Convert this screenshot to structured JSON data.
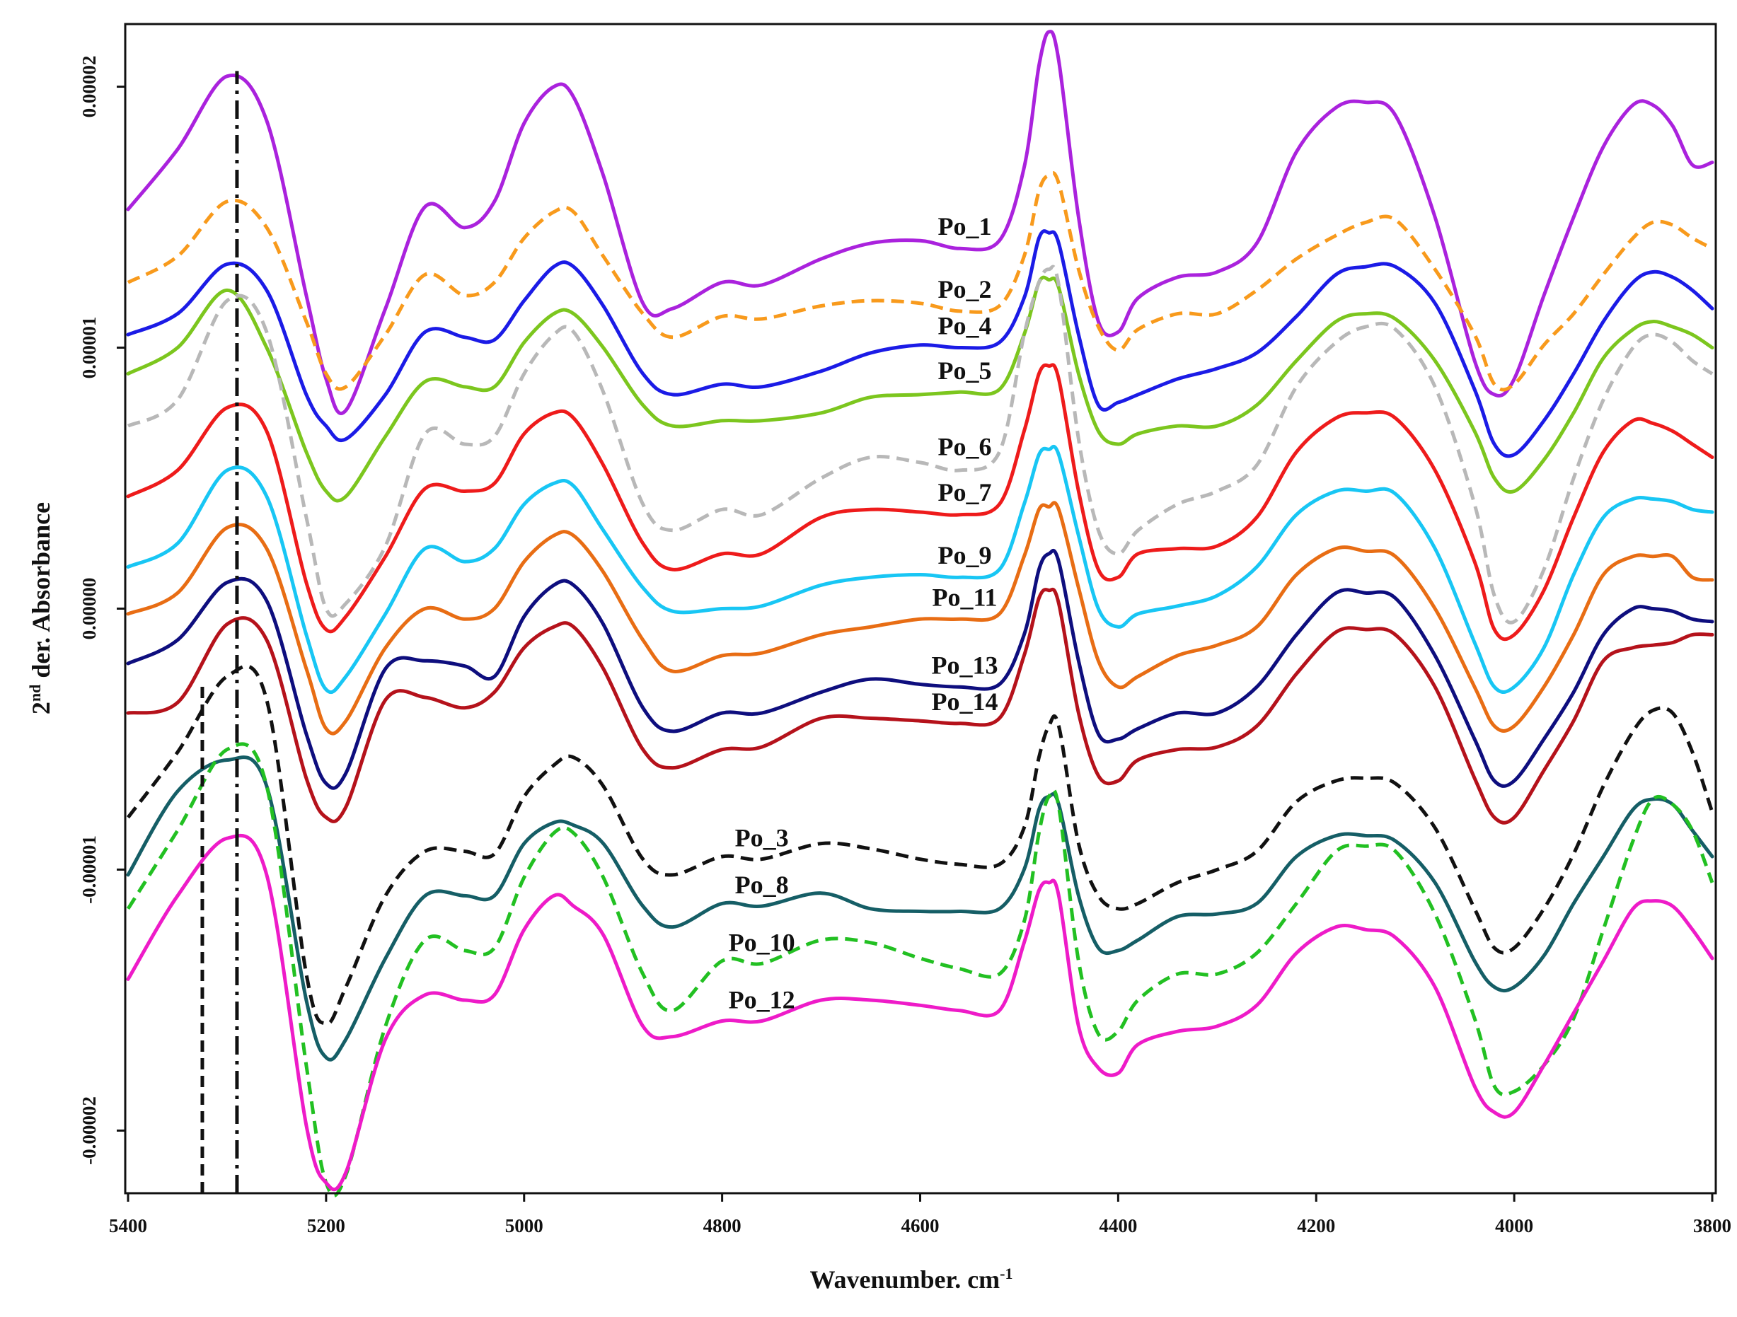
{
  "chart_data": {
    "type": "line",
    "title": "",
    "xlabel": "Wavenumber. cm",
    "xlabel_sup": "-1",
    "ylabel_pre": "2",
    "ylabel_sup": "nd",
    "ylabel_post": " der. Absorbance",
    "xlim": [
      5400,
      3800
    ],
    "ylim": [
      -2.24e-05,
      2.24e-05
    ],
    "x_ticks": [
      5400,
      5200,
      5000,
      4800,
      4600,
      4400,
      4200,
      4000,
      3800
    ],
    "x_tick_labels": [
      "5400",
      "5200",
      "5000",
      "4800",
      "4600",
      "4400",
      "4200",
      "4000",
      "3800"
    ],
    "y_ticks": [
      2e-05,
      1e-05,
      0,
      -1e-05,
      -2e-05
    ],
    "y_tick_labels": [
      "0.00002",
      "0.00001",
      "0.00000",
      "-0.00001",
      "-0.00002"
    ],
    "reference_lines": [
      {
        "x": 5290,
        "style": "dash-dot",
        "ymax": 2.06e-05
      },
      {
        "x": 5325,
        "style": "dashed",
        "ymax": -2.9e-06
      }
    ],
    "x": [
      5400,
      5350,
      5300,
      5260,
      5220,
      5200,
      5180,
      5140,
      5100,
      5060,
      5030,
      5000,
      4970,
      4950,
      4920,
      4880,
      4850,
      4800,
      4760,
      4700,
      4650,
      4600,
      4560,
      4520,
      4495,
      4480,
      4470,
      4460,
      4440,
      4420,
      4400,
      4380,
      4340,
      4300,
      4260,
      4220,
      4180,
      4150,
      4120,
      4080,
      4040,
      4020,
      4000,
      3970,
      3940,
      3910,
      3880,
      3860,
      3840,
      3820,
      3800
    ],
    "series": [
      {
        "name": "Po_1",
        "color": "#AA22DD",
        "dash": "solid",
        "values": [
          15.3,
          17.6,
          20.4,
          18.7,
          12.0,
          8.8,
          7.6,
          11.5,
          15.4,
          14.6,
          15.6,
          18.6,
          20.0,
          19.6,
          16.6,
          11.7,
          11.5,
          12.5,
          12.4,
          13.4,
          14.0,
          14.1,
          13.8,
          14.1,
          16.9,
          20.8,
          22.1,
          21.0,
          15.0,
          11.0,
          10.6,
          11.9,
          12.7,
          12.9,
          14.0,
          17.5,
          19.2,
          19.4,
          18.9,
          15.0,
          9.5,
          8.2,
          8.8,
          12.0,
          15.0,
          17.7,
          19.3,
          19.3,
          18.5,
          17.0,
          17.1
        ]
      },
      {
        "name": "Po_2",
        "color": "#F89A1C",
        "dash": "dashed",
        "values": [
          12.5,
          13.5,
          15.6,
          14.6,
          11.0,
          9.0,
          8.5,
          10.5,
          12.8,
          12.0,
          12.5,
          14.2,
          15.2,
          15.2,
          13.5,
          11.3,
          10.4,
          11.2,
          11.1,
          11.6,
          11.8,
          11.7,
          11.4,
          11.6,
          13.5,
          16.0,
          16.6,
          16.3,
          13.0,
          10.8,
          9.9,
          10.7,
          11.3,
          11.3,
          12.2,
          13.4,
          14.3,
          14.8,
          14.9,
          13.0,
          10.5,
          8.6,
          8.6,
          10.1,
          11.3,
          12.8,
          14.2,
          14.8,
          14.7,
          14.2,
          13.8
        ]
      },
      {
        "name": "Po_4",
        "color": "#1B1BE6",
        "dash": "solid",
        "values": [
          10.5,
          11.3,
          13.2,
          12.2,
          8.2,
          7.0,
          6.5,
          8.2,
          10.6,
          10.4,
          10.3,
          11.8,
          13.1,
          13.1,
          11.6,
          9.0,
          8.2,
          8.6,
          8.5,
          9.1,
          9.8,
          10.1,
          10.0,
          10.2,
          11.9,
          14.2,
          14.4,
          14.0,
          10.5,
          7.8,
          7.9,
          8.2,
          8.8,
          9.2,
          9.8,
          11.2,
          12.8,
          13.1,
          13.1,
          11.7,
          8.4,
          6.3,
          5.9,
          7.2,
          9.0,
          11.0,
          12.5,
          12.9,
          12.7,
          12.2,
          11.5
        ]
      },
      {
        "name": "Po_5",
        "color": "#7CC61E",
        "dash": "solid",
        "values": [
          9.0,
          10.0,
          12.2,
          10.0,
          6.0,
          4.5,
          4.3,
          6.6,
          8.7,
          8.5,
          8.5,
          10.2,
          11.3,
          11.3,
          10.0,
          7.8,
          7.0,
          7.2,
          7.2,
          7.5,
          8.1,
          8.2,
          8.3,
          8.4,
          10.5,
          12.5,
          12.6,
          12.3,
          9.0,
          6.8,
          6.3,
          6.7,
          7.0,
          7.0,
          7.8,
          9.5,
          11.0,
          11.3,
          11.1,
          9.5,
          6.8,
          5.0,
          4.5,
          5.7,
          7.5,
          9.6,
          10.7,
          11.0,
          10.8,
          10.5,
          10.0
        ]
      },
      {
        "name": "Po_6",
        "color": "#B8B8B8",
        "dash": "dashed",
        "values": [
          7.0,
          8.0,
          11.8,
          10.6,
          3.5,
          0.0,
          0.2,
          2.4,
          6.7,
          6.3,
          6.6,
          9.0,
          10.5,
          10.6,
          8.3,
          4.0,
          3.0,
          3.8,
          3.6,
          5.0,
          5.8,
          5.6,
          5.3,
          6.0,
          10.5,
          12.5,
          13.0,
          12.4,
          6.5,
          3.0,
          2.1,
          3.0,
          4.0,
          4.5,
          5.5,
          8.5,
          10.2,
          10.8,
          10.7,
          8.5,
          4.0,
          0.5,
          -0.5,
          1.5,
          5.0,
          8.0,
          10.0,
          10.5,
          10.2,
          9.5,
          9.0
        ]
      },
      {
        "name": "Po_7",
        "color": "#EE1B1B",
        "dash": "solid",
        "values": [
          4.3,
          5.3,
          7.7,
          6.8,
          1.0,
          -0.8,
          -0.3,
          2.0,
          4.6,
          4.5,
          4.8,
          6.7,
          7.5,
          7.3,
          5.5,
          2.5,
          1.5,
          2.1,
          2.1,
          3.5,
          3.8,
          3.7,
          3.6,
          4.0,
          6.8,
          9.0,
          9.3,
          8.8,
          4.5,
          1.5,
          1.2,
          2.1,
          2.3,
          2.4,
          3.5,
          6.0,
          7.3,
          7.5,
          7.3,
          5.3,
          1.8,
          -0.8,
          -1.0,
          0.7,
          3.5,
          6.0,
          7.2,
          7.1,
          6.8,
          6.3,
          5.8
        ]
      },
      {
        "name": "Po_9",
        "color": "#18C6F4",
        "dash": "solid",
        "values": [
          1.6,
          2.5,
          5.3,
          4.3,
          -1.0,
          -3.1,
          -2.6,
          -0.2,
          2.3,
          1.8,
          2.3,
          4.0,
          4.8,
          4.7,
          3.0,
          0.8,
          -0.1,
          0.0,
          0.1,
          0.9,
          1.2,
          1.3,
          1.2,
          1.5,
          4.0,
          5.9,
          6.1,
          5.9,
          2.8,
          0.0,
          -0.7,
          -0.2,
          0.1,
          0.5,
          1.6,
          3.6,
          4.5,
          4.5,
          4.4,
          2.3,
          -1.3,
          -3.0,
          -3.0,
          -1.5,
          1.3,
          3.5,
          4.2,
          4.2,
          4.1,
          3.8,
          3.7
        ]
      },
      {
        "name": "Po_11",
        "color": "#E86D14",
        "dash": "solid",
        "values": [
          -0.2,
          0.6,
          3.1,
          2.3,
          -2.3,
          -4.6,
          -4.3,
          -1.5,
          0.0,
          -0.4,
          0.0,
          1.8,
          2.8,
          2.8,
          1.4,
          -1.2,
          -2.4,
          -1.8,
          -1.7,
          -1.0,
          -0.7,
          -0.4,
          -0.4,
          -0.2,
          2.0,
          3.8,
          3.9,
          3.8,
          0.8,
          -2.0,
          -3.0,
          -2.6,
          -1.8,
          -1.4,
          -0.7,
          1.3,
          2.3,
          2.2,
          2.0,
          0.0,
          -3.0,
          -4.5,
          -4.5,
          -3.0,
          -1.0,
          1.3,
          2.0,
          2.0,
          2.0,
          1.2,
          1.1
        ]
      },
      {
        "name": "Po_13",
        "color": "#0E0E7E",
        "dash": "solid",
        "values": [
          -2.1,
          -1.2,
          1.0,
          0.3,
          -4.8,
          -6.7,
          -6.3,
          -2.3,
          -2.0,
          -2.2,
          -2.6,
          -0.3,
          0.9,
          0.9,
          -0.6,
          -3.8,
          -4.7,
          -4.0,
          -4.0,
          -3.2,
          -2.7,
          -2.9,
          -3.0,
          -2.9,
          -1.0,
          1.5,
          2.1,
          1.8,
          -2.0,
          -4.8,
          -5.0,
          -4.6,
          -4.0,
          -4.0,
          -3.0,
          -1.0,
          0.6,
          0.6,
          0.4,
          -1.8,
          -5.0,
          -6.6,
          -6.6,
          -5.0,
          -3.2,
          -1.0,
          0.0,
          0.0,
          -0.1,
          -0.4,
          -0.5
        ]
      },
      {
        "name": "Po_14",
        "color": "#B5121B",
        "dash": "solid",
        "values": [
          -4.0,
          -3.6,
          -0.6,
          -1.2,
          -6.5,
          -8.0,
          -7.6,
          -3.5,
          -3.4,
          -3.8,
          -3.2,
          -1.5,
          -0.7,
          -0.7,
          -2.3,
          -5.4,
          -6.1,
          -5.4,
          -5.3,
          -4.2,
          -4.2,
          -4.3,
          -4.4,
          -4.2,
          -1.8,
          0.4,
          0.7,
          0.2,
          -4.0,
          -6.4,
          -6.6,
          -5.8,
          -5.4,
          -5.3,
          -4.5,
          -2.5,
          -0.9,
          -0.8,
          -1.0,
          -3.0,
          -6.5,
          -8.0,
          -8.0,
          -6.2,
          -4.3,
          -2.0,
          -1.5,
          -1.4,
          -1.3,
          -1.0,
          -1.0
        ]
      },
      {
        "name": "Po_3",
        "color": "#111111",
        "dash": "dashed",
        "values": [
          -8.0,
          -5.5,
          -2.6,
          -3.5,
          -14.0,
          -15.9,
          -14.5,
          -11.0,
          -9.3,
          -9.3,
          -9.4,
          -7.2,
          -6.0,
          -5.7,
          -6.8,
          -9.6,
          -10.2,
          -9.5,
          -9.6,
          -9.0,
          -9.2,
          -9.6,
          -9.8,
          -9.8,
          -8.4,
          -5.7,
          -4.5,
          -4.5,
          -9.0,
          -11.0,
          -11.5,
          -11.3,
          -10.5,
          -10.0,
          -9.3,
          -7.4,
          -6.6,
          -6.5,
          -6.7,
          -8.4,
          -11.5,
          -13.0,
          -13.0,
          -11.5,
          -9.4,
          -6.8,
          -4.7,
          -3.9,
          -4.0,
          -5.5,
          -7.8
        ]
      },
      {
        "name": "Po_8",
        "color": "#155E66",
        "dash": "solid",
        "values": [
          -10.2,
          -7.0,
          -5.8,
          -6.8,
          -15.0,
          -17.2,
          -16.5,
          -13.4,
          -11.0,
          -11.0,
          -11.0,
          -9.0,
          -8.2,
          -8.3,
          -9.0,
          -11.4,
          -12.2,
          -11.3,
          -11.4,
          -10.9,
          -11.5,
          -11.6,
          -11.6,
          -11.5,
          -10.0,
          -7.7,
          -7.2,
          -7.5,
          -11.0,
          -13.0,
          -13.1,
          -12.7,
          -11.8,
          -11.7,
          -11.3,
          -9.5,
          -8.7,
          -8.7,
          -8.9,
          -10.5,
          -13.5,
          -14.5,
          -14.5,
          -13.3,
          -11.3,
          -9.5,
          -7.7,
          -7.3,
          -7.5,
          -8.5,
          -9.5
        ]
      },
      {
        "name": "Po_10",
        "color": "#22C022",
        "dash": "dashed",
        "values": [
          -11.5,
          -8.5,
          -5.4,
          -6.8,
          -17.5,
          -22.0,
          -21.7,
          -16.0,
          -12.7,
          -13.1,
          -13.0,
          -10.3,
          -8.6,
          -8.6,
          -10.3,
          -14.0,
          -15.4,
          -13.5,
          -13.6,
          -12.7,
          -12.8,
          -13.4,
          -13.8,
          -14.0,
          -12.0,
          -8.6,
          -7.2,
          -7.6,
          -13.5,
          -16.3,
          -16.2,
          -15.0,
          -14.0,
          -14.0,
          -13.2,
          -11.3,
          -9.3,
          -9.1,
          -9.3,
          -11.7,
          -15.7,
          -18.3,
          -18.5,
          -17.5,
          -15.7,
          -12.3,
          -8.9,
          -7.3,
          -7.5,
          -8.5,
          -10.5
        ]
      },
      {
        "name": "Po_12",
        "color": "#EE1BC8",
        "dash": "solid",
        "values": [
          -14.2,
          -11.0,
          -8.8,
          -10.2,
          -19.8,
          -22.0,
          -21.6,
          -16.5,
          -14.8,
          -15.0,
          -14.8,
          -12.3,
          -11.0,
          -11.4,
          -12.5,
          -16.0,
          -16.4,
          -15.8,
          -15.8,
          -15.0,
          -15.0,
          -15.2,
          -15.4,
          -15.4,
          -12.8,
          -10.8,
          -10.5,
          -11.0,
          -16.0,
          -17.6,
          -17.8,
          -16.7,
          -16.2,
          -16.0,
          -15.2,
          -13.2,
          -12.2,
          -12.3,
          -12.6,
          -14.5,
          -18.3,
          -19.3,
          -19.3,
          -17.5,
          -15.5,
          -13.5,
          -11.5,
          -11.2,
          -11.4,
          -12.3,
          -13.4
        ]
      }
    ],
    "value_scale": 1e-06,
    "series_labels": [
      {
        "text": "Po_1",
        "x": 4555
      },
      {
        "text": "Po_2",
        "x": 4555
      },
      {
        "text": "Po_4",
        "x": 4555
      },
      {
        "text": "Po_5",
        "x": 4555
      },
      {
        "text": "Po_6",
        "x": 4555
      },
      {
        "text": "Po_7",
        "x": 4555
      },
      {
        "text": "Po_9",
        "x": 4555
      },
      {
        "text": "Po_11",
        "x": 4555
      },
      {
        "text": "Po_13",
        "x": 4555
      },
      {
        "text": "Po_14",
        "x": 4555
      },
      {
        "text": "Po_3",
        "x": 4760
      },
      {
        "text": "Po_8",
        "x": 4760
      },
      {
        "text": "Po_10",
        "x": 4760
      },
      {
        "text": "Po_12",
        "x": 4760
      }
    ]
  }
}
